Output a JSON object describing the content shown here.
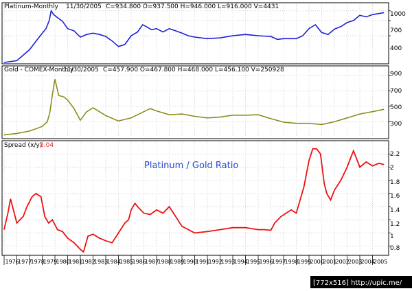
{
  "chart_data": [
    {
      "type": "line",
      "header": {
        "symbol": "Platinum-Monthly",
        "date": "11/30/2005",
        "stats": "C=934.800  O=937.500  H=946.000  L=916.000  V=4431"
      },
      "y_ticks": [
        "1000",
        "700",
        "400"
      ],
      "series": [
        {
          "color": "#1f1fd6",
          "x": [
            1976.0,
            1977.0,
            1978.0,
            1978.8,
            1979.3,
            1979.55,
            1979.7,
            1979.9,
            1980.2,
            1980.6,
            1981.0,
            1981.5,
            1982.0,
            1982.5,
            1983.0,
            1983.5,
            1984.0,
            1984.5,
            1985.0,
            1985.5,
            1986.0,
            1986.5,
            1986.9,
            1987.2,
            1987.6,
            1988.0,
            1988.5,
            1989.0,
            1989.5,
            1990.0,
            1990.5,
            1991.0,
            1992.0,
            1993.0,
            1994.0,
            1995.0,
            1996.0,
            1997.0,
            1997.5,
            1998.0,
            1999.0,
            1999.5,
            2000.0,
            2000.5,
            2001.0,
            2001.5,
            2002.0,
            2002.5,
            2003.0,
            2003.5,
            2004.0,
            2004.5,
            2005.0,
            2005.9
          ],
          "y": [
            150,
            160,
            240,
            390,
            520,
            700,
            1000,
            870,
            780,
            680,
            520,
            480,
            380,
            420,
            440,
            420,
            390,
            330,
            270,
            290,
            400,
            460,
            600,
            560,
            500,
            520,
            460,
            520,
            480,
            440,
            400,
            380,
            360,
            370,
            400,
            420,
            400,
            390,
            350,
            360,
            360,
            400,
            520,
            600,
            450,
            420,
            510,
            560,
            650,
            700,
            850,
            800,
            870,
            935
          ]
        }
      ]
    },
    {
      "type": "line",
      "header": {
        "symbol": "Gold - COMEX-Monthly",
        "date": "11/30/2005",
        "stats": "C=457.900  O=467.800  H=468.000  L=456.100  V=250928"
      },
      "y_ticks": [
        "900",
        "700",
        "500",
        "300"
      ],
      "series": [
        {
          "color": "#8c8c1c",
          "x": [
            1976.0,
            1977.0,
            1978.0,
            1979.0,
            1979.4,
            1979.6,
            1979.8,
            1980.0,
            1980.3,
            1980.7,
            1981.0,
            1981.5,
            1982.0,
            1982.5,
            1983.0,
            1984.0,
            1985.0,
            1985.5,
            1986.0,
            1987.0,
            1987.5,
            1988.0,
            1989.0,
            1990.0,
            1991.0,
            1992.0,
            1993.0,
            1994.0,
            1995.0,
            1996.0,
            1997.0,
            1998.0,
            1999.0,
            2000.0,
            2001.0,
            2002.0,
            2003.0,
            2004.0,
            2005.0,
            2005.9
          ],
          "y": [
            130,
            150,
            180,
            240,
            300,
            420,
            650,
            850,
            640,
            620,
            580,
            470,
            320,
            430,
            480,
            380,
            310,
            330,
            350,
            430,
            470,
            440,
            390,
            400,
            370,
            350,
            360,
            385,
            385,
            390,
            340,
            295,
            280,
            280,
            265,
            300,
            350,
            400,
            430,
            460
          ]
        }
      ]
    },
    {
      "type": "line",
      "header": {
        "label": "Spread (x/y)",
        "value": "2.04"
      },
      "annotation": "Platinum / Gold Ratio",
      "y_ticks": [
        "2.2",
        "2",
        "1.8",
        "1.6",
        "1.4",
        "1.2",
        "1",
        "0.8"
      ],
      "x_tick_labels": [
        "1976",
        "1977",
        "1978",
        "1979",
        "1980",
        "1981",
        "1982",
        "1983",
        "1984",
        "1985",
        "1986",
        "1987",
        "1988",
        "1989",
        "1990",
        "1991",
        "1992",
        "1993",
        "1994",
        "1995",
        "1996",
        "1997",
        "1998",
        "1999",
        "2000",
        "2001",
        "2002",
        "2003",
        "2004",
        "2005"
      ],
      "series": [
        {
          "color": "#ee1111",
          "x": [
            1976.0,
            1976.3,
            1976.5,
            1977.0,
            1977.5,
            1977.8,
            1978.2,
            1978.5,
            1978.9,
            1979.2,
            1979.5,
            1979.8,
            1980.2,
            1980.6,
            1981.0,
            1981.5,
            1982.0,
            1982.25,
            1982.6,
            1983.0,
            1983.5,
            1984.0,
            1984.5,
            1985.0,
            1985.5,
            1985.8,
            1986.0,
            1986.3,
            1986.6,
            1987.0,
            1987.5,
            1988.0,
            1988.5,
            1989.0,
            1989.5,
            1990.0,
            1990.5,
            1991.0,
            1992.0,
            1993.0,
            1994.0,
            1995.0,
            1996.0,
            1996.5,
            1997.0,
            1997.3,
            1997.8,
            1998.2,
            1998.6,
            1999.0,
            1999.3,
            1999.6,
            2000.0,
            2000.3,
            2000.6,
            2000.9,
            2001.2,
            2001.4,
            2001.7,
            2002.0,
            2002.5,
            2003.0,
            2003.3,
            2003.5,
            2003.8,
            2004.0,
            2004.5,
            2005.0,
            2005.5,
            2005.9
          ],
          "y": [
            1.05,
            1.3,
            1.52,
            1.15,
            1.25,
            1.4,
            1.55,
            1.6,
            1.55,
            1.25,
            1.15,
            1.2,
            1.05,
            1.02,
            0.92,
            0.85,
            0.75,
            0.71,
            0.95,
            0.98,
            0.92,
            0.88,
            0.85,
            1.0,
            1.15,
            1.2,
            1.35,
            1.45,
            1.38,
            1.3,
            1.28,
            1.35,
            1.3,
            1.4,
            1.25,
            1.1,
            1.05,
            1.0,
            1.02,
            1.05,
            1.08,
            1.08,
            1.05,
            1.05,
            1.04,
            1.15,
            1.25,
            1.3,
            1.35,
            1.3,
            1.5,
            1.7,
            2.1,
            2.28,
            2.28,
            2.2,
            1.75,
            1.6,
            1.5,
            1.65,
            1.8,
            2.0,
            2.15,
            2.25,
            2.1,
            2.0,
            2.08,
            2.02,
            2.06,
            2.04
          ]
        }
      ]
    }
  ],
  "watermark": "[772x516] http://upic.me/"
}
